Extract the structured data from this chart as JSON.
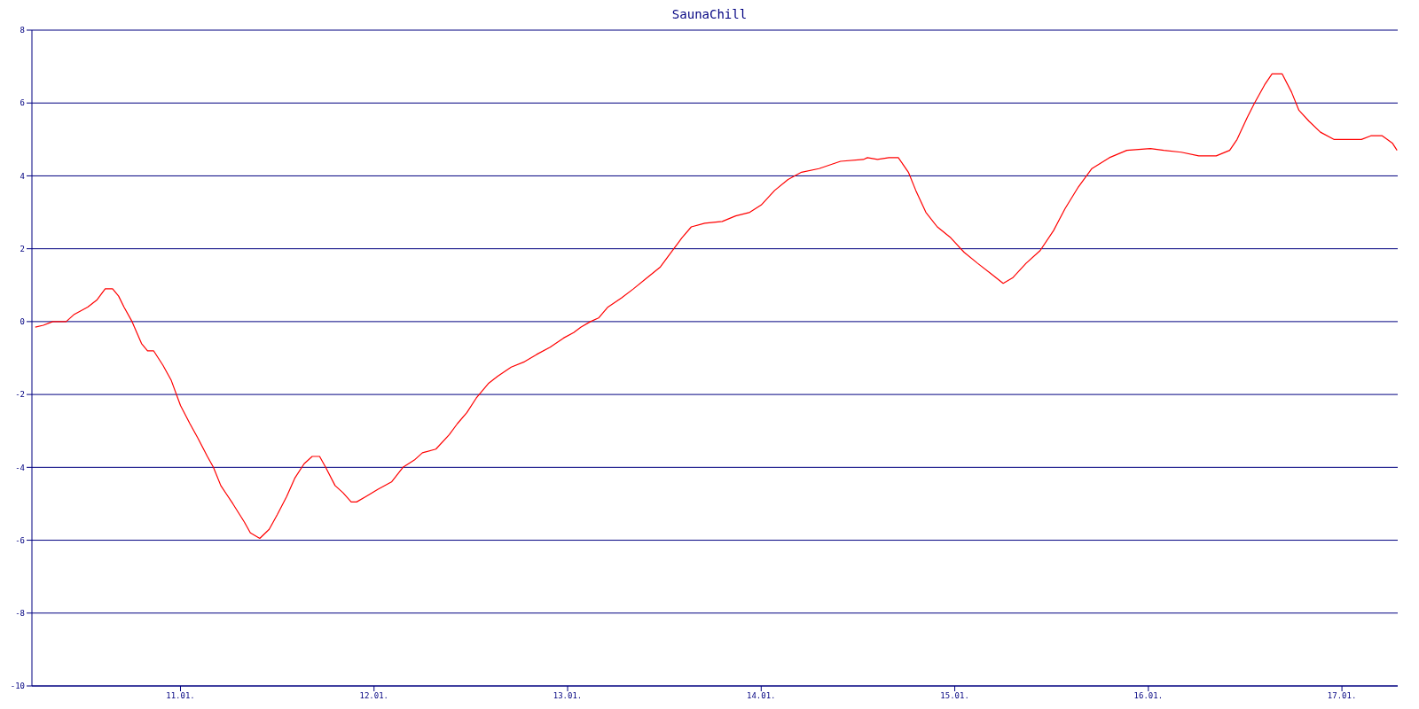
{
  "chart_data": {
    "type": "line",
    "title": "SaunaChill",
    "x": [
      "--01-10T06:00",
      "--01-10T07:00",
      "--01-10T08:10",
      "--01-10T09:50",
      "--01-10T10:50",
      "--01-10T12:30",
      "--01-10T13:40",
      "--01-10T14:40",
      "--01-10T15:35",
      "--01-10T16:20",
      "--01-10T17:00",
      "--01-10T18:00",
      "--01-10T19:10",
      "--01-10T19:55",
      "--01-10T20:40",
      "--01-10T21:50",
      "--01-10T22:50",
      "--01-11T00:00",
      "--01-11T01:10",
      "--01-11T02:10",
      "--01-11T03:20",
      "--01-11T04:05",
      "--01-11T05:00",
      "--01-11T06:30",
      "--01-11T07:55",
      "--01-11T08:40",
      "--01-11T09:50",
      "--01-11T11:00",
      "--01-11T12:00",
      "--01-11T13:10",
      "--01-11T14:10",
      "--01-11T15:20",
      "--01-11T16:20",
      "--01-11T17:15",
      "--01-11T18:00",
      "--01-11T19:10",
      "--01-11T20:10",
      "--01-11T21:10",
      "--01-11T21:50",
      "--01-11T23:00",
      "--01-12T00:30",
      "--01-12T02:10",
      "--01-12T03:35",
      "--01-12T05:00",
      "--01-12T06:00",
      "--01-12T07:40",
      "--01-12T09:20",
      "--01-12T10:20",
      "--01-12T11:30",
      "--01-12T12:40",
      "--01-12T14:10",
      "--01-12T15:20",
      "--01-12T17:00",
      "--01-12T18:40",
      "--01-12T20:10",
      "--01-12T21:50",
      "--01-12T23:30",
      "--01-13T00:45",
      "--01-13T01:40",
      "--01-13T02:50",
      "--01-13T03:50",
      "--01-13T05:00",
      "--01-13T06:40",
      "--01-13T08:10",
      "--01-13T09:50",
      "--01-13T11:30",
      "--01-13T13:10",
      "--01-13T14:10",
      "--01-13T15:20",
      "--01-13T17:00",
      "--01-13T19:10",
      "--01-13T20:50",
      "--01-13T22:35",
      "--01-14T00:00",
      "--01-14T01:40",
      "--01-14T03:20",
      "--01-14T05:00",
      "--01-14T07:10",
      "--01-14T09:50",
      "--01-14T12:40",
      "--01-14T13:10",
      "--01-14T14:25",
      "--01-14T15:50",
      "--01-14T17:00",
      "--01-14T18:15",
      "--01-14T19:10",
      "--01-14T20:25",
      "--01-14T21:50",
      "--01-14T23:30",
      "--01-15T01:10",
      "--01-15T02:50",
      "--01-15T04:35",
      "--01-15T06:00",
      "--01-15T07:10",
      "--01-15T08:50",
      "--01-15T10:35",
      "--01-15T12:15",
      "--01-15T13:40",
      "--01-15T15:20",
      "--01-15T17:00",
      "--01-15T19:10",
      "--01-15T21:20",
      "--01-16T00:15",
      "--01-16T01:55",
      "--01-16T04:05",
      "--01-16T06:15",
      "--01-16T08:25",
      "--01-16T10:05",
      "--01-16T11:00",
      "--01-16T12:15",
      "--01-16T13:10",
      "--01-16T14:25",
      "--01-16T15:20",
      "--01-16T16:35",
      "--01-16T17:45",
      "--01-16T18:40",
      "--01-16T19:55",
      "--01-16T21:20",
      "--01-16T23:00",
      "--01-17T02:25",
      "--01-17T03:35",
      "--01-17T05:00",
      "--01-17T06:15",
      "--01-17T06:50"
    ],
    "series": [
      {
        "color": "#ff0000",
        "values": [
          -0.15,
          -0.1,
          0,
          0,
          0.2,
          0.4,
          0.6,
          0.9,
          0.9,
          0.7,
          0.4,
          0,
          -0.6,
          -0.8,
          -0.8,
          -1.2,
          -1.6,
          -2.3,
          -2.8,
          -3.2,
          -3.7,
          -4,
          -4.5,
          -5,
          -5.5,
          -5.8,
          -5.95,
          -5.7,
          -5.3,
          -4.8,
          -4.3,
          -3.9,
          -3.7,
          -3.7,
          -4,
          -4.5,
          -4.7,
          -4.95,
          -4.95,
          -4.8,
          -4.6,
          -4.4,
          -4,
          -3.8,
          -3.6,
          -3.5,
          -3.1,
          -2.8,
          -2.5,
          -2.1,
          -1.7,
          -1.5,
          -1.25,
          -1.1,
          -0.9,
          -0.7,
          -0.45,
          -0.3,
          -0.15,
          0,
          0.1,
          0.4,
          0.65,
          0.9,
          1.2,
          1.5,
          2,
          2.3,
          2.6,
          2.7,
          2.75,
          2.9,
          3,
          3.2,
          3.6,
          3.9,
          4.1,
          4.2,
          4.4,
          4.45,
          4.5,
          4.45,
          4.5,
          4.5,
          4.1,
          3.6,
          3,
          2.6,
          2.3,
          1.9,
          1.6,
          1.3,
          1.05,
          1.2,
          1.6,
          1.95,
          2.5,
          3.1,
          3.7,
          4.2,
          4.5,
          4.7,
          4.75,
          4.7,
          4.65,
          4.55,
          4.55,
          4.7,
          5,
          5.6,
          6,
          6.5,
          6.8,
          6.8,
          6.3,
          5.8,
          5.5,
          5.2,
          5,
          5,
          5.1,
          5.1,
          4.9,
          4.7
        ]
      }
    ],
    "xlim": [
      "--01-10T05:35",
      "--01-17T06:55"
    ],
    "xticks": [
      {
        "value": "--01-11",
        "label": "11.01."
      },
      {
        "value": "--01-12",
        "label": "12.01."
      },
      {
        "value": "--01-13",
        "label": "13.01."
      },
      {
        "value": "--01-14",
        "label": "14.01."
      },
      {
        "value": "--01-15",
        "label": "15.01."
      },
      {
        "value": "--01-16",
        "label": "16.01."
      },
      {
        "value": "--01-17",
        "label": "17.01."
      }
    ],
    "ylim": [
      -10,
      8
    ],
    "yticks": [
      -10,
      -8,
      -6,
      -4,
      -2,
      0,
      2,
      4,
      6,
      8
    ],
    "grid": "y",
    "line_style": "solid"
  }
}
